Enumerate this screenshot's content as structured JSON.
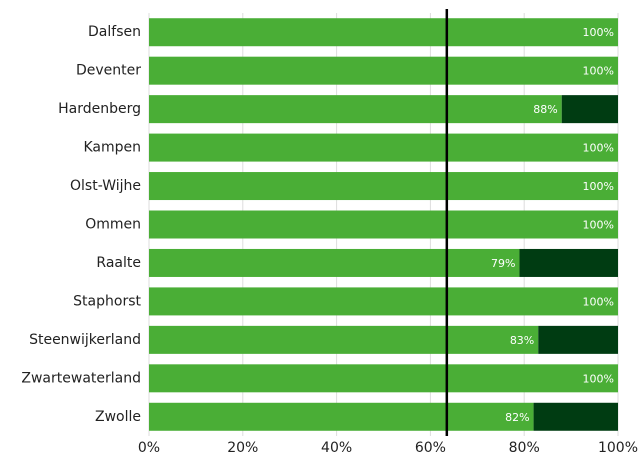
{
  "chart_data": {
    "type": "stacked-barh",
    "categories": [
      "Dalfsen",
      "Deventer",
      "Hardenberg",
      "Kampen",
      "Olst-Wijhe",
      "Ommen",
      "Raalte",
      "Staphorst",
      "Steenwijkerland",
      "Zwartewaterland",
      "Zwolle"
    ],
    "series": [
      {
        "color": "#4aae36",
        "values": [
          100,
          100,
          88,
          100,
          100,
          100,
          79,
          100,
          83,
          100,
          82
        ],
        "value_labels": [
          "100%",
          "100%",
          "88%",
          "100%",
          "100%",
          "100%",
          "79%",
          "100%",
          "83%",
          "100%",
          "82%"
        ]
      },
      {
        "color": "#003c12",
        "values": [
          0,
          0,
          12,
          0,
          0,
          0,
          21,
          0,
          17,
          0,
          18
        ]
      }
    ],
    "xlim": [
      0,
      100
    ],
    "xticks": [
      {
        "value": 0,
        "label": "0%"
      },
      {
        "value": 20,
        "label": "20%"
      },
      {
        "value": 40,
        "label": "40%"
      },
      {
        "value": 60,
        "label": "60%"
      },
      {
        "value": 80,
        "label": "80%"
      },
      {
        "value": 100,
        "label": "100%"
      }
    ],
    "grid": true,
    "reference_value": 63.5
  }
}
